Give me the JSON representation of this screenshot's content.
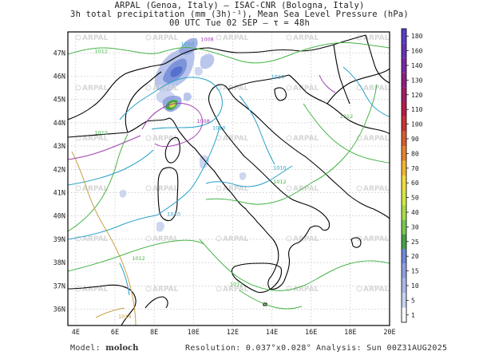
{
  "header": {
    "line1": "ARPAL (Genoa, Italy)  —  ISAC-CNR (Bologna, Italy)",
    "line2": "3h total precipitation (mm (3h)⁻¹), Mean Sea Level Pressure (hPa)",
    "line3": "00 UTC Tue 02 SEP  —  τ = 48h"
  },
  "footer": {
    "model_label": "Model:",
    "model_value": "moloch",
    "resolution_label": "Resolution:",
    "resolution_value": "0.037°x0.028°",
    "analysis_label": "Analysis:",
    "analysis_value": "Sun 00Z31AUG2025"
  },
  "watermark": "ARPAL",
  "map": {
    "lon_labels": [
      "4E",
      "6E",
      "8E",
      "10E",
      "12E",
      "14E",
      "16E",
      "18E",
      "20E"
    ],
    "lat_labels": [
      "36N",
      "37N",
      "38N",
      "39N",
      "40N",
      "41N",
      "42N",
      "43N",
      "44N",
      "45N",
      "46N",
      "47N"
    ],
    "isobar_labels": [
      {
        "text": "1012",
        "lon": 5.3,
        "lat": 47.0,
        "color": "#46b446"
      },
      {
        "text": "1010",
        "lon": 9.7,
        "lat": 47.3,
        "color": "#28a0c8"
      },
      {
        "text": "1008",
        "lon": 10.7,
        "lat": 47.5,
        "color": "#a040b0"
      },
      {
        "text": "1010",
        "lon": 14.3,
        "lat": 45.9,
        "color": "#28a0c8"
      },
      {
        "text": "1008",
        "lon": 10.5,
        "lat": 44.0,
        "color": "#a040b0"
      },
      {
        "text": "1010",
        "lon": 11.3,
        "lat": 43.7,
        "color": "#28a0c8"
      },
      {
        "text": "1012",
        "lon": 17.8,
        "lat": 44.2,
        "color": "#46b446"
      },
      {
        "text": "1012",
        "lon": 5.3,
        "lat": 43.5,
        "color": "#46b446"
      },
      {
        "text": "1010",
        "lon": 14.4,
        "lat": 42.0,
        "color": "#28a0c8"
      },
      {
        "text": "1012",
        "lon": 14.4,
        "lat": 41.4,
        "color": "#46b446"
      },
      {
        "text": "1010",
        "lon": 9.0,
        "lat": 40.0,
        "color": "#28a0c8"
      },
      {
        "text": "1012",
        "lon": 7.2,
        "lat": 38.1,
        "color": "#46b446"
      },
      {
        "text": "1012",
        "lon": 12.2,
        "lat": 37.0,
        "color": "#46b446"
      },
      {
        "text": "1014",
        "lon": 6.5,
        "lat": 35.6,
        "color": "#c8a046"
      }
    ]
  },
  "colorbar": {
    "levels": [
      1,
      5,
      10,
      15,
      20,
      25,
      30,
      40,
      50,
      60,
      70,
      80,
      90,
      100,
      110,
      120,
      130,
      140,
      160,
      180
    ],
    "colors": [
      "#ffffff",
      "#c8d2ee",
      "#aab8e6",
      "#8ca0de",
      "#6e88d6",
      "#46a046",
      "#78c850",
      "#aadc46",
      "#d2e646",
      "#f0dc3c",
      "#f0b432",
      "#e6822d",
      "#d75a2d",
      "#c83232",
      "#b41e46",
      "#a01e64",
      "#8c1e82",
      "#7828a0",
      "#6432b4",
      "#5a3cc8"
    ]
  }
}
